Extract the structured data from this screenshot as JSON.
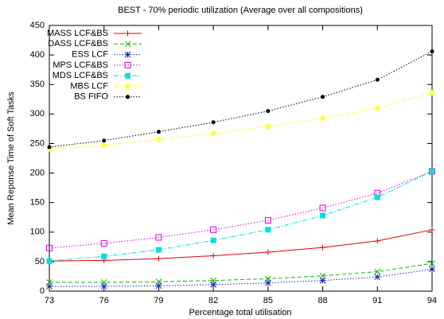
{
  "chart_data": {
    "type": "line",
    "title": "BEST - 70% periodic utilization (Average over all compositions)",
    "x_label": "Percentage total utilisation",
    "y_label": "Mean Reponse Time of Soft Tasks",
    "x": [
      73,
      76,
      79,
      82,
      85,
      88,
      91,
      94
    ],
    "xlim": [
      73,
      94
    ],
    "xticks": [
      73,
      76,
      79,
      82,
      85,
      88,
      91,
      94
    ],
    "ylim": [
      0,
      450
    ],
    "yticks": [
      0,
      50,
      100,
      150,
      200,
      250,
      300,
      350,
      400,
      450
    ],
    "legend": "top-left",
    "series": [
      {
        "name": "MASS LCF&BS",
        "color": "#e00000",
        "dash": "solid",
        "marker": "plus",
        "values": [
          51,
          52,
          55,
          60,
          66,
          74,
          85,
          104
        ]
      },
      {
        "name": "DASS LCF&BS",
        "color": "#00c000",
        "dash": "dashed",
        "marker": "cross",
        "values": [
          15,
          15,
          16,
          18,
          21,
          26,
          33,
          47
        ]
      },
      {
        "name": "ESS LCF",
        "color": "#2020c0",
        "dash": "dotted",
        "marker": "star",
        "values": [
          8,
          8,
          9,
          11,
          14,
          18,
          24,
          37
        ]
      },
      {
        "name": "MPS LCF&BS",
        "color": "#e000e0",
        "dash": "dotted",
        "marker": "square-open",
        "values": [
          73,
          81,
          91,
          104,
          120,
          141,
          166,
          203
        ]
      },
      {
        "name": "MDS LCF&BS",
        "color": "#00e0e0",
        "dash": "dashdot",
        "marker": "square",
        "values": [
          51,
          59,
          70,
          86,
          104,
          128,
          159,
          203
        ]
      },
      {
        "name": "MBS LCF",
        "color": "#ffff40",
        "dash": "dashed",
        "marker": "circle",
        "values": [
          241,
          247,
          257,
          267,
          279,
          293,
          310,
          336
        ]
      },
      {
        "name": "BS FIFO",
        "color": "#000000",
        "dash": "dotted",
        "marker": "dot",
        "values": [
          244,
          255,
          270,
          286,
          305,
          329,
          358,
          406
        ]
      }
    ]
  }
}
